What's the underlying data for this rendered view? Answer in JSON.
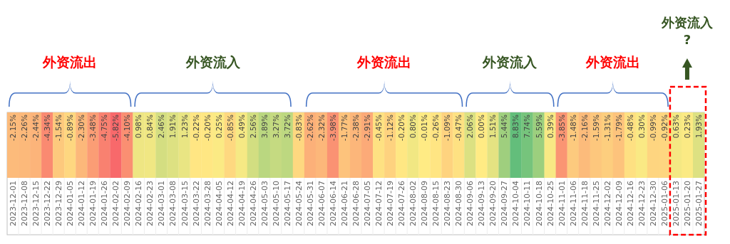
{
  "chart_data": {
    "type": "heatmap",
    "categories": [
      "2023-12-01",
      "2023-12-08",
      "2023-12-15",
      "2023-12-22",
      "2023-12-29",
      "2024-01-05",
      "2024-01-12",
      "2024-01-19",
      "2024-01-26",
      "2024-02-02",
      "2024-02-09",
      "2024-02-16",
      "2024-02-23",
      "2024-03-01",
      "2024-03-08",
      "2024-03-15",
      "2024-03-22",
      "2024-03-28",
      "2024-04-05",
      "2024-04-12",
      "2024-04-19",
      "2024-04-26",
      "2024-05-03",
      "2024-05-10",
      "2024-05-17",
      "2024-05-24",
      "2024-05-31",
      "2024-06-07",
      "2024-06-14",
      "2024-06-21",
      "2024-06-28",
      "2024-07-05",
      "2024-07-12",
      "2024-07-19",
      "2024-07-26",
      "2024-08-02",
      "2024-08-09",
      "2024-08-15",
      "2024-08-23",
      "2024-08-30",
      "2024-09-06",
      "2024-09-13",
      "2024-09-20",
      "2024-09-27",
      "2024-10-04",
      "2024-10-11",
      "2024-10-18",
      "2024-10-25",
      "2024-11-01",
      "2024-11-06",
      "2024-11-18",
      "2024-11-25",
      "2024-12-02",
      "2024-12-09",
      "2024-12-16",
      "2024-12-23",
      "2024-12-30",
      "2025-01-06",
      "2025-01-13",
      "2025-01-20",
      "2025-01-27"
    ],
    "y_categories": [
      null
    ],
    "cells": [
      [
        -2.15,
        -2.26,
        -2.44,
        -4.34,
        -1.54,
        -0.89,
        -2.3,
        -3.48,
        -4.75,
        -5.82,
        -4.1,
        0.98,
        0.84,
        2.46,
        1.91,
        1.23,
        -0.22,
        -0.2,
        0.25,
        -0.85,
        0.49,
        2.56,
        3.89,
        3.27,
        3.72,
        -0.83,
        -2.62,
        -2.32,
        -3.98,
        -1.77,
        -2.38,
        -2.91,
        -0.45,
        -1.12,
        -0.2,
        0.8,
        -0.01,
        -0.26,
        -1.09,
        -0.47,
        2.06,
        0.0,
        1.51,
        5.44,
        8.83,
        7.74,
        5.59,
        0.39,
        -3.85,
        -1.48,
        -2.16,
        -1.59,
        -1.31,
        -1.79,
        -0.48,
        0.3,
        -0.99,
        -0.92,
        0.63,
        0.23,
        1.93
      ]
    ],
    "cell_labels": [
      [
        "-2.15%",
        "-2.26%",
        "-2.44%",
        "-4.34%",
        "-1.54%",
        "-0.89%",
        "-2.30%",
        "-3.48%",
        "-4.75%",
        "-5.82%",
        "-4.10%",
        "0.98%",
        "0.84%",
        "2.46%",
        "1.91%",
        "1.23%",
        "-0.22%",
        "-0.20%",
        "0.25%",
        "-0.85%",
        "0.49%",
        "2.56%",
        "3.89%",
        "3.27%",
        "3.72%",
        "-0.83%",
        "-2.62%",
        "-2.32%",
        "-3.98%",
        "-1.77%",
        "-2.38%",
        "-2.91%",
        "-0.45%",
        "-1.12%",
        "-0.20%",
        "0.80%",
        "-0.01%",
        "-0.26%",
        "-1.09%",
        "-0.47%",
        "2.06%",
        "0.00%",
        "1.51%",
        "5.44%",
        "8.83%",
        "7.74%",
        "5.59%",
        "0.39%",
        "-3.85%",
        "-1.48%",
        "-2.16%",
        "-1.59%",
        "-1.31%",
        "-1.79%",
        "-0.48%",
        "0.30%",
        "-0.99%",
        "-0.92%",
        "0.63%",
        "0.23%",
        "1.93%"
      ]
    ],
    "annotations": [
      "外资流出",
      "外资流入",
      "外资流出",
      "外资流入",
      "外资流出",
      "外资流入\n?"
    ]
  }
}
